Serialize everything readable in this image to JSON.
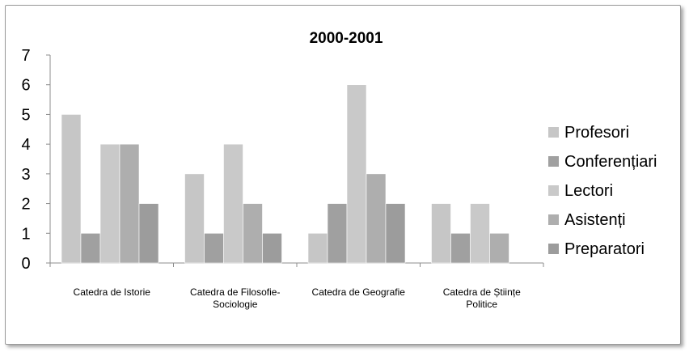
{
  "chart_data": {
    "type": "bar",
    "title": "2000-2001",
    "xlabel": "",
    "ylabel": "",
    "ylim": [
      0,
      7
    ],
    "yticks": [
      "0",
      "1",
      "2",
      "3",
      "4",
      "5",
      "6",
      "7"
    ],
    "grid": false,
    "legend_position": "right",
    "categories": [
      [
        "Catedra de Istorie"
      ],
      [
        "Catedra de Filosofie-",
        "Sociologie"
      ],
      [
        "Catedra de Geografie"
      ],
      [
        "Catedra de Științe",
        "Politice"
      ]
    ],
    "series": [
      {
        "name": "Profesori",
        "color": "#c6c6c6",
        "values": [
          5,
          3,
          1,
          2
        ]
      },
      {
        "name": "Conferențiari",
        "color": "#a0a0a0",
        "values": [
          1,
          1,
          2,
          1
        ]
      },
      {
        "name": "Lectori",
        "color": "#c9c9c9",
        "values": [
          4,
          4,
          6,
          2
        ]
      },
      {
        "name": "Asistenți",
        "color": "#aeaeae",
        "values": [
          4,
          2,
          3,
          1
        ]
      },
      {
        "name": "Preparatori",
        "color": "#9c9c9c",
        "values": [
          2,
          1,
          2,
          0
        ]
      }
    ]
  }
}
